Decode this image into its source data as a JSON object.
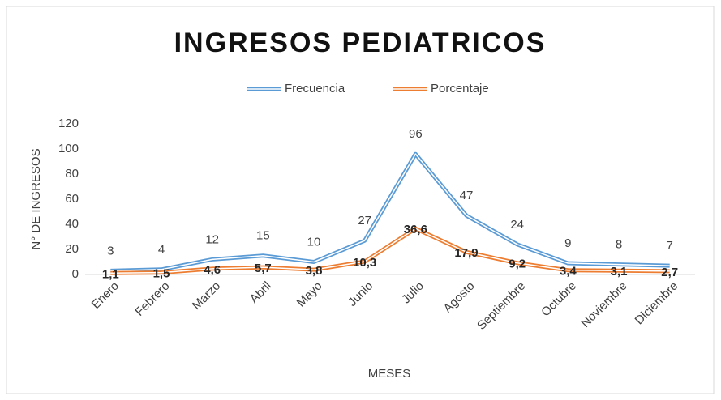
{
  "chart_data": {
    "type": "line",
    "title": "INGRESOS PEDIATRICOS",
    "x_label": "MESES",
    "y_label": "N° DE INGRESOS",
    "categories": [
      "Enero",
      "Febrero",
      "Marzo",
      "Abril",
      "Mayo",
      "Junio",
      "Julio",
      "Agosto",
      "Septiembre",
      "Octubre",
      "Noviembre",
      "Diciembre"
    ],
    "series": [
      {
        "name": "Frecuencia",
        "color": "#5b9bd5",
        "values": [
          3,
          4,
          12,
          15,
          10,
          27,
          96,
          47,
          24,
          9,
          8,
          7
        ]
      },
      {
        "name": "Porcentaje",
        "color": "#ed7d31",
        "values": [
          1.1,
          1.5,
          4.6,
          5.7,
          3.8,
          10.3,
          36.6,
          17.9,
          9.2,
          3.4,
          3.1,
          2.7
        ],
        "value_labels": [
          "1,1",
          "1,5",
          "4,6",
          "5,7",
          "3,8",
          "10,3",
          "36,6",
          "17,9",
          "9,2",
          "3,4",
          "3,1",
          "2,7"
        ]
      }
    ],
    "ylim": [
      0,
      120
    ],
    "yticks": [
      0,
      20,
      40,
      60,
      80,
      100,
      120
    ],
    "grid": false,
    "legend": "top"
  }
}
